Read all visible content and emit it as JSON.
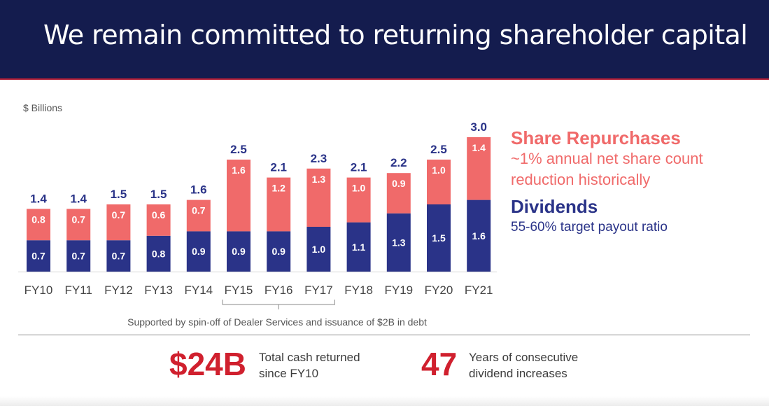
{
  "title": "We remain committed to returning shareholder capital",
  "colors": {
    "repurchase": "#f06a6a",
    "dividend": "#2a3388",
    "header_bg": "#141c4e",
    "highlight": "#d0202e"
  },
  "chart_data": {
    "type": "bar",
    "stacked": true,
    "unit_label": "$ Billions",
    "categories": [
      "FY10",
      "FY11",
      "FY12",
      "FY13",
      "FY14",
      "FY15",
      "FY16",
      "FY17",
      "FY18",
      "FY19",
      "FY20",
      "FY21"
    ],
    "series": [
      {
        "name": "Dividends",
        "values": [
          0.7,
          0.7,
          0.7,
          0.8,
          0.9,
          0.9,
          0.9,
          1.0,
          1.1,
          1.3,
          1.5,
          1.6
        ]
      },
      {
        "name": "Share Repurchases",
        "values": [
          0.8,
          0.7,
          0.7,
          0.6,
          0.7,
          1.6,
          1.2,
          1.3,
          1.0,
          0.9,
          1.0,
          1.4
        ]
      }
    ],
    "totals": [
      "1.4",
      "1.4",
      "1.5",
      "1.5",
      "1.6",
      "2.5",
      "2.1",
      "2.3",
      "2.1",
      "2.2",
      "2.5",
      "3.0"
    ],
    "dividend_labels": [
      "0.7",
      "0.7",
      "0.7",
      "0.8",
      "0.9",
      "0.9",
      "0.9",
      "1.0",
      "1.1",
      "1.3",
      "1.5",
      "1.6"
    ],
    "repurchase_labels": [
      "0.8",
      "0.7",
      "0.7",
      "0.6",
      "0.7",
      "1.6",
      "1.2",
      "1.3",
      "1.0",
      "0.9",
      "1.0",
      "1.4"
    ],
    "bracket": {
      "from": "FY15",
      "to": "FY17",
      "note": "Supported by spin-off of Dealer Services and issuance of $2B in debt"
    },
    "ylim": [
      0,
      3.0
    ],
    "grid": false
  },
  "legend": {
    "repurchases_title": "Share Repurchases",
    "repurchases_line1": "~1% annual net share count",
    "repurchases_line2": "reduction historically",
    "dividends_title": "Dividends",
    "dividends_sub": "55-60% target payout ratio"
  },
  "summary": {
    "cash_value": "$24B",
    "cash_line1": "Total cash returned",
    "cash_line2": "since FY10",
    "years_value": "47",
    "years_line1": "Years of consecutive",
    "years_line2": "dividend increases"
  }
}
